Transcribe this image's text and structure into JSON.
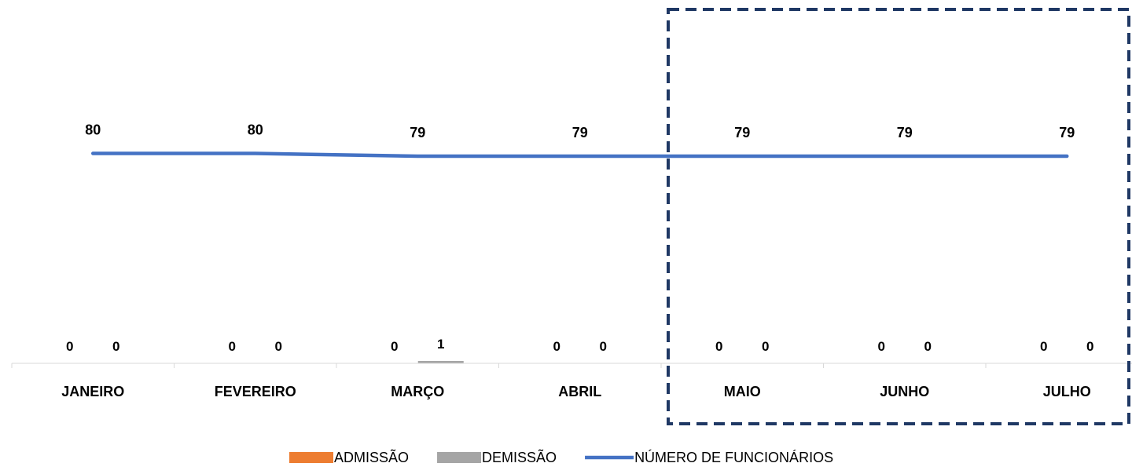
{
  "chart_data": {
    "type": "bar",
    "categories": [
      "JANEIRO",
      "FEVEREIRO",
      "MARÇO",
      "ABRIL",
      "MAIO",
      "JUNHO",
      "JULHO"
    ],
    "series": [
      {
        "name": "ADMISSÃO",
        "kind": "bar",
        "color": "#ED7D31",
        "values": [
          0,
          0,
          0,
          0,
          0,
          0,
          0
        ]
      },
      {
        "name": "DEMISSÃO",
        "kind": "bar",
        "color": "#A5A5A5",
        "values": [
          0,
          0,
          1,
          0,
          0,
          0,
          0
        ]
      },
      {
        "name": "NÚMERO DE FUNCIONÁRIOS",
        "kind": "line",
        "color": "#4472C4",
        "values": [
          80,
          80,
          79,
          79,
          79,
          79,
          79
        ]
      }
    ],
    "highlight": {
      "categories": [
        "MAIO",
        "JUNHO",
        "JULHO"
      ],
      "style": "dashed-box",
      "color": "#1F3864"
    },
    "legend": "bottom",
    "grid": false
  }
}
